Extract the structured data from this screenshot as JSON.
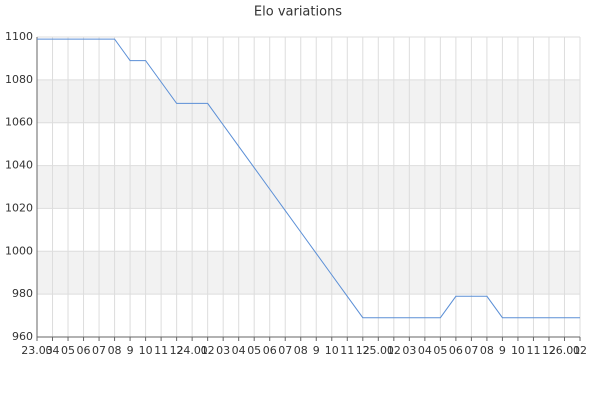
{
  "chart_data": {
    "type": "line",
    "title": "Elo variations",
    "categories": [
      "23.03",
      "04",
      "05",
      "06",
      "07",
      "08",
      "9",
      "10",
      "11",
      "12",
      "24.01",
      "02",
      "03",
      "04",
      "05",
      "06",
      "07",
      "08",
      "9",
      "10",
      "11",
      "12",
      "25.01",
      "02",
      "03",
      "04",
      "05",
      "06",
      "07",
      "08",
      "9",
      "10",
      "11",
      "12",
      "26.01",
      "02"
    ],
    "series": [
      {
        "name": "Elo",
        "color": "#5b8fd6",
        "values": [
          1099,
          1099,
          1099,
          1099,
          1099,
          1099,
          1089,
          1089,
          1079,
          1069,
          1069,
          1069,
          1059,
          1049,
          1039,
          1029,
          1019,
          1009,
          999,
          989,
          979,
          969,
          969,
          969,
          969,
          969,
          969,
          979,
          979,
          979,
          969,
          969,
          969,
          969,
          969,
          969
        ]
      }
    ],
    "ylim": [
      960,
      1100
    ],
    "yticks": [
      960,
      980,
      1000,
      1020,
      1040,
      1060,
      1080,
      1100
    ],
    "grid": true
  }
}
